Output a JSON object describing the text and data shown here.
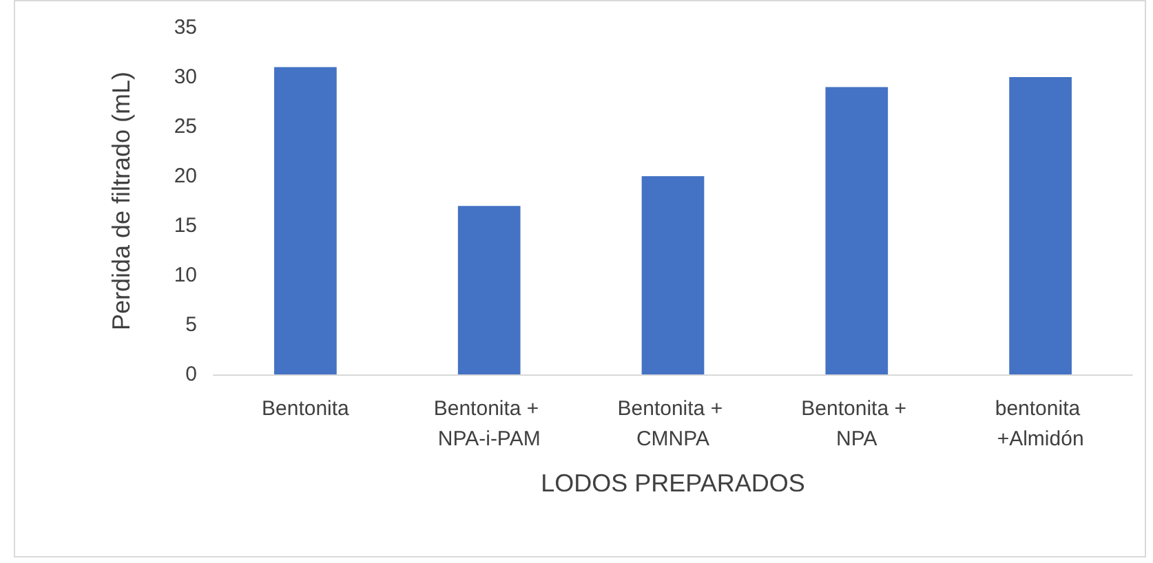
{
  "chart_data": {
    "type": "bar",
    "xlabel": "LODOS PREPARADOS",
    "ylabel": "Perdida de filtrado (mL)",
    "categories": [
      "Bentonita",
      "Bentonita + NPA-i-PAM",
      "Bentonita + CMNPA",
      "Bentonita + NPA",
      "bentonita +Almidón"
    ],
    "values": [
      31,
      17,
      20,
      29,
      30
    ],
    "color": "#4472c4",
    "ylim": [
      0,
      35
    ],
    "yticks": [
      0,
      5,
      10,
      15,
      20,
      25,
      30,
      35
    ]
  }
}
